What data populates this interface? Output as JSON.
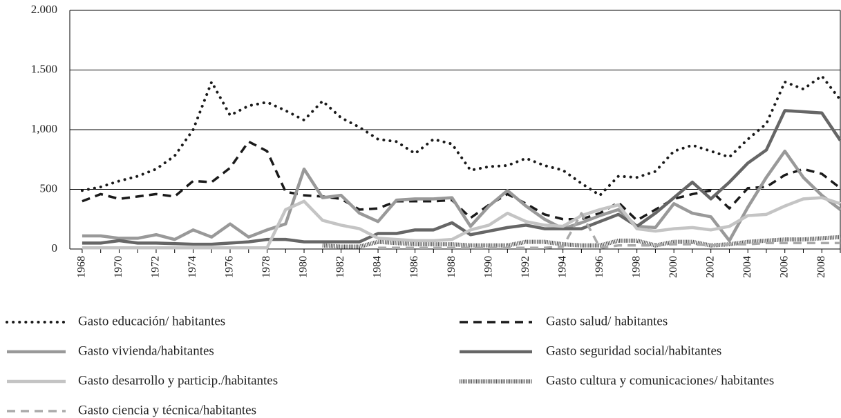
{
  "chart_data": {
    "type": "line",
    "x": [
      1968,
      1969,
      1970,
      1971,
      1972,
      1973,
      1974,
      1975,
      1976,
      1977,
      1978,
      1979,
      1980,
      1981,
      1982,
      1983,
      1984,
      1985,
      1986,
      1987,
      1988,
      1989,
      1990,
      1991,
      1992,
      1993,
      1994,
      1995,
      1996,
      1997,
      1998,
      1999,
      2000,
      2001,
      2002,
      2003,
      2004,
      2005,
      2006,
      2007,
      2008,
      2009
    ],
    "xlim": [
      1967.33,
      2009
    ],
    "xticks": [
      1968,
      1970,
      1972,
      1974,
      1976,
      1978,
      1980,
      1982,
      1984,
      1986,
      1988,
      1990,
      1992,
      1994,
      1996,
      1998,
      2000,
      2002,
      2004,
      2006,
      2008
    ],
    "ylim": [
      0,
      2000
    ],
    "yticks": [
      {
        "value": 0,
        "label": "0"
      },
      {
        "value": 500,
        "label": "500"
      },
      {
        "value": 1000,
        "label": "1,000"
      },
      {
        "value": 1500,
        "label": "1.500"
      },
      {
        "value": 2000,
        "label": "2.000"
      }
    ],
    "grid": true,
    "series": [
      {
        "name": "Gasto educación/ habitantes",
        "color": "#1a1a1a",
        "style": "dotted",
        "values": [
          490,
          520,
          570,
          610,
          670,
          780,
          1000,
          1400,
          1120,
          1200,
          1230,
          1160,
          1080,
          1240,
          1100,
          1020,
          920,
          900,
          800,
          920,
          880,
          660,
          690,
          700,
          760,
          700,
          660,
          550,
          450,
          610,
          600,
          650,
          820,
          870,
          820,
          770,
          920,
          1050,
          1400,
          1340,
          1450,
          1250
        ]
      },
      {
        "name": "Gasto salud/ habitantes",
        "color": "#1a1a1a",
        "style": "dashed",
        "values": [
          400,
          460,
          420,
          440,
          460,
          440,
          570,
          560,
          680,
          900,
          820,
          480,
          450,
          440,
          420,
          330,
          340,
          400,
          400,
          400,
          410,
          260,
          370,
          460,
          380,
          290,
          250,
          250,
          300,
          390,
          240,
          330,
          420,
          460,
          490,
          340,
          510,
          520,
          620,
          670,
          630,
          510
        ]
      },
      {
        "name": "Gasto vivienda/habitantes",
        "color": "#999999",
        "style": "solid",
        "values": [
          110,
          110,
          90,
          90,
          120,
          80,
          160,
          100,
          210,
          100,
          160,
          210,
          670,
          430,
          450,
          300,
          230,
          410,
          420,
          420,
          430,
          190,
          360,
          490,
          360,
          250,
          170,
          220,
          280,
          330,
          190,
          180,
          380,
          300,
          270,
          70,
          350,
          600,
          820,
          600,
          450,
          330
        ]
      },
      {
        "name": "Gasto seguridad social/habitantes",
        "color": "#666666",
        "style": "solid",
        "values": [
          50,
          50,
          70,
          50,
          50,
          45,
          40,
          40,
          50,
          60,
          80,
          80,
          60,
          60,
          60,
          60,
          130,
          130,
          160,
          160,
          220,
          120,
          150,
          180,
          200,
          170,
          170,
          170,
          230,
          290,
          190,
          300,
          430,
          560,
          420,
          560,
          720,
          830,
          1160,
          1150,
          1140,
          910
        ]
      },
      {
        "name": "Gasto desarrollo y particip./habitantes",
        "color": "#c4c4c4",
        "style": "solid",
        "values": [
          10,
          10,
          10,
          10,
          10,
          10,
          10,
          10,
          10,
          10,
          10,
          330,
          400,
          240,
          200,
          170,
          90,
          80,
          70,
          70,
          80,
          160,
          200,
          300,
          230,
          200,
          190,
          280,
          330,
          370,
          170,
          150,
          170,
          180,
          160,
          190,
          280,
          290,
          360,
          420,
          430,
          380
        ]
      },
      {
        "name": "Gasto cultura y comunicaciones/ habitantes",
        "color": "#555555",
        "style": "hatched",
        "values": [
          null,
          null,
          null,
          null,
          null,
          null,
          null,
          null,
          null,
          null,
          null,
          null,
          null,
          30,
          20,
          20,
          60,
          50,
          40,
          40,
          40,
          30,
          30,
          30,
          60,
          60,
          40,
          30,
          30,
          70,
          70,
          30,
          60,
          60,
          30,
          40,
          60,
          70,
          80,
          80,
          90,
          100
        ]
      },
      {
        "name": "Gasto ciencia y técnica/habitantes",
        "color": "#aaaaaa",
        "style": "dashed",
        "values": [
          null,
          null,
          null,
          null,
          null,
          null,
          null,
          null,
          null,
          null,
          null,
          null,
          null,
          null,
          null,
          null,
          10,
          10,
          10,
          10,
          10,
          10,
          10,
          10,
          10,
          10,
          20,
          300,
          10,
          30,
          30,
          30,
          40,
          40,
          30,
          40,
          40,
          50,
          50,
          50,
          50,
          50
        ]
      }
    ]
  }
}
